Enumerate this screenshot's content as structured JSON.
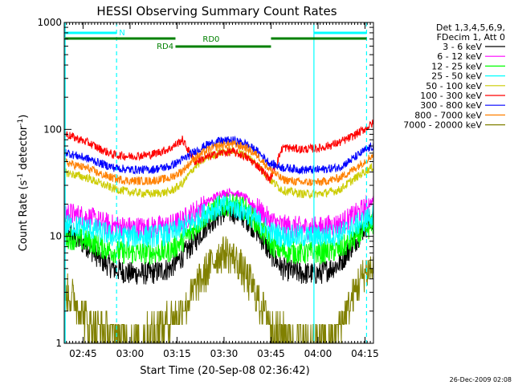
{
  "chart_data": {
    "type": "line",
    "title": "HESSI Observing Summary Count Rates",
    "xlabel": "Start Time (20-Sep-08 02:36:42)",
    "ylabel": "Count Rate (s",
    "ylabel_sup1": "-1",
    "ylabel_mid": " detector",
    "ylabel_sup2": "-1",
    "ylabel_end": ")",
    "y_scale": "log",
    "ylim": [
      1,
      1000
    ],
    "xlim_minutes": [
      2.3,
      101.0
    ],
    "y_ticks": [
      {
        "value": 1,
        "label": "1"
      },
      {
        "value": 10,
        "label": "10"
      },
      {
        "value": 100,
        "label": "100"
      },
      {
        "value": 1000,
        "label": "1000"
      }
    ],
    "x_ticks": [
      {
        "minute": 8.3,
        "label": "02:45"
      },
      {
        "minute": 23.3,
        "label": "03:00"
      },
      {
        "minute": 38.3,
        "label": "03:15"
      },
      {
        "minute": 53.3,
        "label": "03:30"
      },
      {
        "minute": 68.3,
        "label": "03:45"
      },
      {
        "minute": 83.3,
        "label": "04:00"
      },
      {
        "minute": 98.3,
        "label": "04:15"
      }
    ],
    "legend_header": [
      "Det 1,3,4,5,6,9,",
      "FDecim 1, Att 0"
    ],
    "series": [
      {
        "name": "3 - 6 keV",
        "color": "#000000",
        "x": [
          2.3,
          5,
          10,
          14,
          18,
          23,
          30,
          36,
          40,
          44,
          48,
          52,
          56,
          60,
          64,
          68,
          72,
          78,
          84,
          90,
          94,
          98,
          101
        ],
        "y": [
          12,
          10,
          8,
          6,
          5,
          4.5,
          4.5,
          5,
          6.5,
          9,
          13,
          16,
          17,
          15,
          11,
          7,
          5,
          4.5,
          4.5,
          5.5,
          8,
          12,
          15
        ]
      },
      {
        "name": "6 - 12 keV",
        "color": "#ff00ff",
        "x": [
          2.3,
          5,
          10,
          14,
          18,
          23,
          30,
          36,
          40,
          44,
          48,
          52,
          56,
          60,
          64,
          68,
          72,
          78,
          84,
          90,
          94,
          98,
          101
        ],
        "y": [
          17,
          16,
          15,
          13.5,
          12.5,
          12,
          12,
          12.5,
          14,
          17,
          21,
          25,
          26,
          23,
          18,
          14,
          12.5,
          12,
          12,
          13,
          15,
          18,
          22
        ]
      },
      {
        "name": "12 - 25 keV",
        "color": "#00ff00",
        "x": [
          2.3,
          5,
          10,
          14,
          18,
          23,
          30,
          36,
          40,
          44,
          48,
          52,
          56,
          60,
          64,
          68,
          72,
          78,
          84,
          90,
          94,
          98,
          101
        ],
        "y": [
          10,
          9.5,
          9,
          8,
          7.2,
          7,
          7,
          7.3,
          9,
          12,
          16,
          19,
          20,
          18,
          13,
          8.5,
          7.2,
          7,
          7,
          7.5,
          9,
          11,
          13
        ]
      },
      {
        "name": "25 - 50 keV",
        "color": "#00ffff",
        "x": [
          2.3,
          5,
          10,
          14,
          18,
          23,
          30,
          36,
          40,
          44,
          48,
          52,
          56,
          60,
          64,
          68,
          72,
          78,
          84,
          90,
          94,
          98,
          101
        ],
        "y": [
          13,
          12.5,
          12,
          11,
          10,
          10,
          10,
          10.5,
          12,
          14,
          17,
          19,
          19,
          17,
          14,
          11,
          10,
          10,
          10,
          10.5,
          12,
          14,
          16
        ]
      },
      {
        "name": "50 - 100 keV",
        "color": "#cccc00",
        "x": [
          2.3,
          5,
          10,
          14,
          18,
          23,
          30,
          36,
          40,
          44,
          48,
          52,
          56,
          60,
          64,
          68,
          72,
          78,
          84,
          90,
          94,
          98,
          101
        ],
        "y": [
          40,
          38,
          35,
          31,
          28,
          26,
          25,
          26,
          31,
          45,
          55,
          61,
          63,
          58,
          47,
          34,
          27,
          25,
          25,
          27,
          33,
          40,
          45
        ]
      },
      {
        "name": "100 - 300 keV",
        "color": "#ff0000",
        "x": [
          2.3,
          5,
          10,
          14,
          18,
          23,
          30,
          36,
          40,
          44,
          48,
          52,
          56,
          60,
          64,
          68,
          72,
          78,
          84,
          90,
          94,
          98,
          101
        ],
        "y": [
          92,
          85,
          75,
          65,
          58,
          56,
          58,
          66,
          80,
          50,
          55,
          60,
          62,
          56,
          46,
          34,
          68,
          65,
          67,
          75,
          85,
          100,
          115
        ]
      },
      {
        "name": "300 - 800 keV",
        "color": "#0000ff",
        "x": [
          2.3,
          5,
          10,
          14,
          18,
          23,
          30,
          36,
          40,
          44,
          48,
          52,
          56,
          60,
          64,
          68,
          72,
          78,
          84,
          90,
          94,
          98,
          101
        ],
        "y": [
          62,
          58,
          53,
          48,
          44,
          42,
          42,
          45,
          52,
          62,
          72,
          78,
          79,
          74,
          62,
          48,
          44,
          42,
          42,
          44,
          52,
          63,
          70
        ]
      },
      {
        "name": "800 - 7000 keV",
        "color": "#ff8000",
        "x": [
          2.3,
          5,
          10,
          14,
          18,
          23,
          30,
          36,
          40,
          44,
          48,
          52,
          56,
          60,
          64,
          68,
          72,
          78,
          84,
          90,
          94,
          98,
          101
        ],
        "y": [
          50,
          47,
          43,
          38,
          35,
          33,
          33,
          35,
          41,
          54,
          64,
          71,
          73,
          68,
          57,
          42,
          34,
          32,
          32,
          35,
          41,
          50,
          58
        ]
      },
      {
        "name": "7000 - 20000 keV",
        "color": "#808000",
        "x": [
          2.3,
          4,
          6,
          10,
          14,
          18,
          22,
          26,
          30,
          34,
          38,
          42,
          46,
          50,
          52,
          54,
          56,
          58,
          62,
          66,
          70,
          76,
          82,
          88,
          92,
          94,
          96,
          98,
          100,
          101
        ],
        "y": [
          3,
          2.8,
          2.5,
          1.5,
          1.3,
          1.2,
          1.1,
          1.0,
          1.3,
          1.5,
          1.8,
          2.5,
          4,
          6,
          6.8,
          7,
          6.5,
          5.5,
          3.5,
          2,
          1.3,
          1.1,
          1.0,
          1.1,
          1.8,
          2.5,
          3.5,
          4.5,
          5,
          5
        ]
      }
    ],
    "annotations": {
      "n_label": "N",
      "rd0_label": "RD0",
      "rd4_label": "RD4"
    },
    "timestamp": "26-Dec-2009 02:08"
  }
}
